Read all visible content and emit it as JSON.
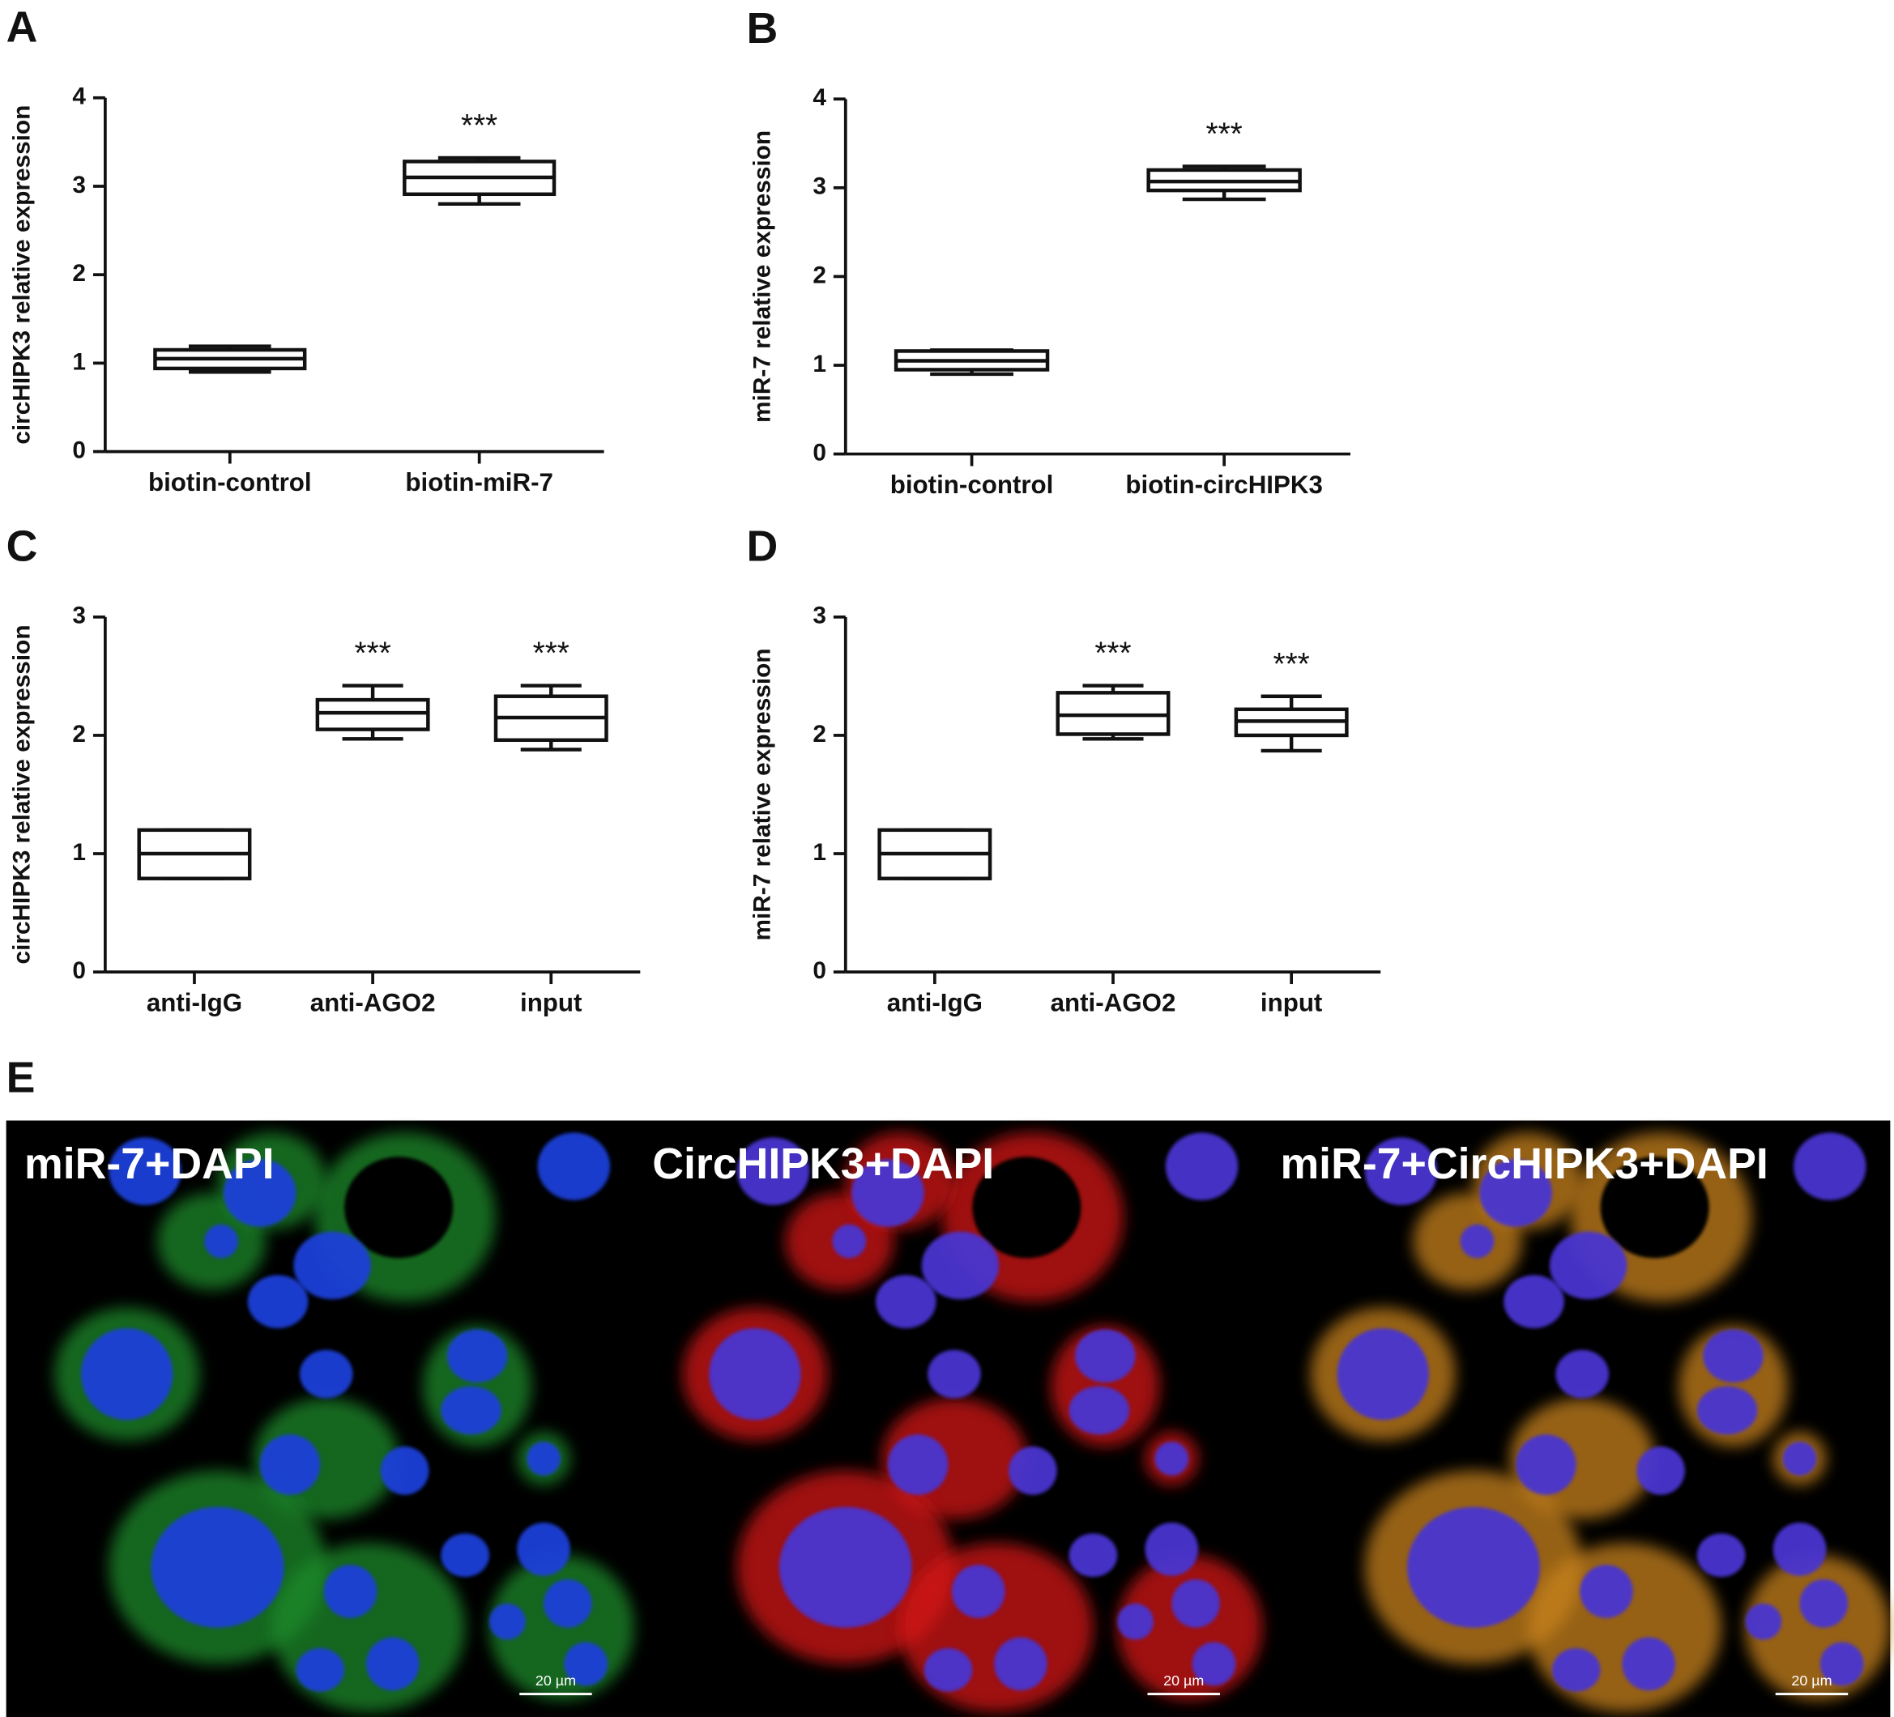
{
  "chart_data": [
    {
      "type": "box",
      "panel": "A",
      "y_label": "circHIPK3 relative expression",
      "categories": [
        "biotin-control",
        "biotin-miR-7"
      ],
      "boxes": [
        {
          "min": 0.9,
          "q1": 0.94,
          "median": 1.05,
          "q3": 1.15,
          "max": 1.19
        },
        {
          "min": 2.8,
          "q1": 2.91,
          "median": 3.1,
          "q3": 3.28,
          "max": 3.32
        }
      ],
      "annotations": [
        null,
        "***"
      ],
      "ylim": [
        0,
        4
      ],
      "yticks": [
        0,
        1,
        2,
        3,
        4
      ]
    },
    {
      "type": "box",
      "panel": "B",
      "y_label": "miR-7 relative expression",
      "categories": [
        "biotin-control",
        "biotin-circHIPK3"
      ],
      "boxes": [
        {
          "min": 0.9,
          "q1": 0.95,
          "median": 1.05,
          "q3": 1.16,
          "max": 1.17
        },
        {
          "min": 2.87,
          "q1": 2.97,
          "median": 3.07,
          "q3": 3.2,
          "max": 3.24
        }
      ],
      "annotations": [
        null,
        "***"
      ],
      "ylim": [
        0,
        4
      ],
      "yticks": [
        0,
        1,
        2,
        3,
        4
      ]
    },
    {
      "type": "box",
      "panel": "C",
      "y_label": "circHIPK3 relative expression",
      "categories": [
        "anti-IgG",
        "anti-AGO2",
        "input"
      ],
      "boxes": [
        {
          "min": 0.79,
          "q1": 0.79,
          "median": 1.0,
          "q3": 1.2,
          "max": 1.2
        },
        {
          "min": 1.97,
          "q1": 2.05,
          "median": 2.19,
          "q3": 2.3,
          "max": 2.42
        },
        {
          "min": 1.88,
          "q1": 1.96,
          "median": 2.15,
          "q3": 2.33,
          "max": 2.42
        }
      ],
      "annotations": [
        null,
        "***",
        "***"
      ],
      "ylim": [
        0,
        3
      ],
      "yticks": [
        0,
        1,
        2,
        3
      ]
    },
    {
      "type": "box",
      "panel": "D",
      "y_label": "miR-7 relative expression",
      "categories": [
        "anti-IgG",
        "anti-AGO2",
        "input"
      ],
      "boxes": [
        {
          "min": 0.79,
          "q1": 0.79,
          "median": 1.0,
          "q3": 1.2,
          "max": 1.2
        },
        {
          "min": 1.97,
          "q1": 2.01,
          "median": 2.17,
          "q3": 2.36,
          "max": 2.42
        },
        {
          "min": 1.87,
          "q1": 2.0,
          "median": 2.12,
          "q3": 2.22,
          "max": 2.33
        }
      ],
      "annotations": [
        null,
        "***",
        "***"
      ],
      "ylim": [
        0,
        3
      ],
      "yticks": [
        0,
        1,
        2,
        3
      ]
    }
  ],
  "figure_e": {
    "panel": "E",
    "images": [
      {
        "label": "miR-7+DAPI",
        "scale_bar": "20 µm"
      },
      {
        "label": "CircHIPK3+DAPI",
        "scale_bar": "20 µm"
      },
      {
        "label": "miR-7+CircHIPK3+DAPI",
        "scale_bar": "20 µm"
      }
    ]
  }
}
